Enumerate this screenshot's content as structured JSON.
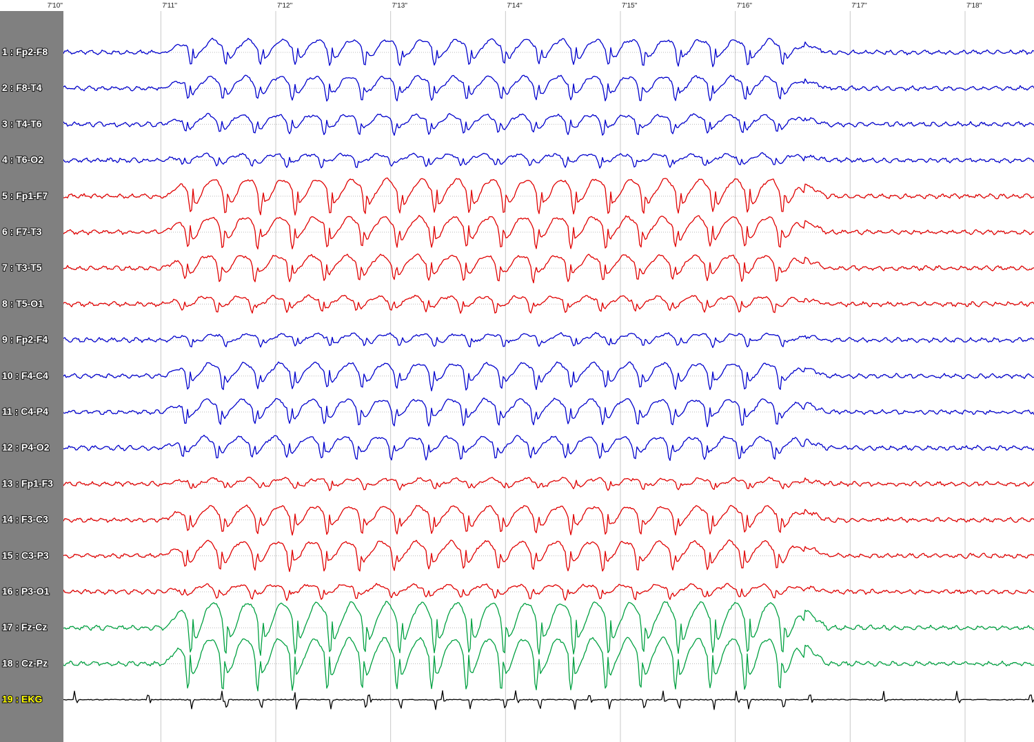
{
  "chart_data": {
    "type": "line",
    "title": "",
    "xlabel": "",
    "ylabel": "",
    "time_ticks": [
      "7'10''",
      "7'11''",
      "7'12''",
      "7'13''",
      "7'14''",
      "7'15''",
      "7'16''",
      "7'17''",
      "7'18''"
    ],
    "x_range_seconds": [
      429.6,
      438.6
    ],
    "seizure_onset_s": 431.0,
    "seizure_offset_s": 436.6,
    "discharge_rate_hz": 3.3,
    "grid": true,
    "legend": "none",
    "colors": {
      "right_hemisphere": "#0000cc",
      "left_hemisphere": "#e00000",
      "midline": "#00a040",
      "ekg": "#000000",
      "ekg_label": "#ffff00",
      "label_column": "#808080"
    },
    "channels": [
      {
        "label": "1 : Fp2-F8",
        "group": "right_hemisphere",
        "amplitude": 0.75
      },
      {
        "label": "2 : F8-T4",
        "group": "right_hemisphere",
        "amplitude": 0.7
      },
      {
        "label": "3 : T4-T6",
        "group": "right_hemisphere",
        "amplitude": 0.55
      },
      {
        "label": "4 : T6-O2",
        "group": "right_hemisphere",
        "amplitude": 0.35
      },
      {
        "label": "5 : Fp1-F7",
        "group": "left_hemisphere",
        "amplitude": 1.0
      },
      {
        "label": "6 : F7-T3",
        "group": "left_hemisphere",
        "amplitude": 0.9
      },
      {
        "label": "7 : T3-T5",
        "group": "left_hemisphere",
        "amplitude": 0.75
      },
      {
        "label": "8 : T5-O1",
        "group": "left_hemisphere",
        "amplitude": 0.45
      },
      {
        "label": "9 : Fp2-F4",
        "group": "right_hemisphere",
        "amplitude": 0.35
      },
      {
        "label": "10 : F4-C4",
        "group": "right_hemisphere",
        "amplitude": 0.75
      },
      {
        "label": "11 : C4-P4",
        "group": "right_hemisphere",
        "amplitude": 0.75
      },
      {
        "label": "12 : P4-O2",
        "group": "right_hemisphere",
        "amplitude": 0.65
      },
      {
        "label": "13 : Fp1-F3",
        "group": "left_hemisphere",
        "amplitude": 0.3
      },
      {
        "label": "14 : F3-C3",
        "group": "left_hemisphere",
        "amplitude": 0.8
      },
      {
        "label": "15 : C3-P3",
        "group": "left_hemisphere",
        "amplitude": 0.85
      },
      {
        "label": "16 : P3-O1",
        "group": "left_hemisphere",
        "amplitude": 0.4
      },
      {
        "label": "17 : Fz-Cz",
        "group": "midline",
        "amplitude": 1.5
      },
      {
        "label": "18 : Cz-Pz",
        "group": "midline",
        "amplitude": 1.5
      },
      {
        "label": "19 : EKG",
        "group": "ekg",
        "amplitude": 0.15
      }
    ]
  }
}
